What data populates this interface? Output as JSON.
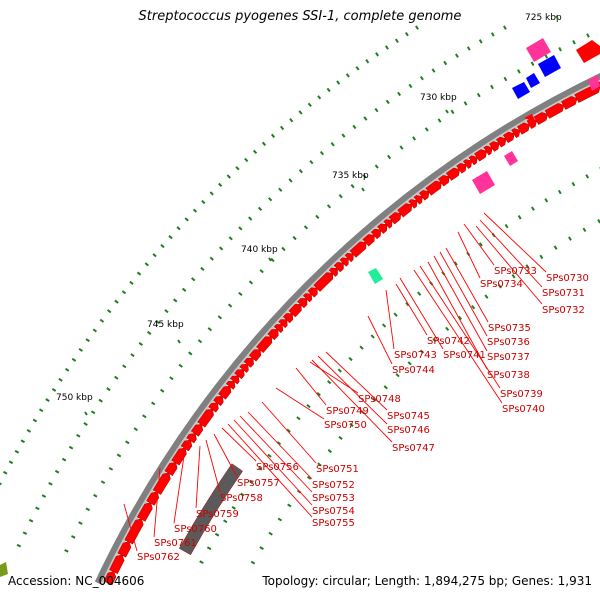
{
  "title": "Streptococcus pyogenes SSI-1, complete genome",
  "footer": {
    "accession": "Accession: NC_004606",
    "summary": "Topology: circular; Length: 1,894,275 bp; Genes: 1,931"
  },
  "colors": {
    "backbone": "#808080",
    "cds": "#ff0000",
    "cds_dark": "#c00000",
    "rRNA": "#ff3399",
    "blue_feature": "#0000ff",
    "cyan_feature": "#22ee99",
    "gray_feature": "#5a5a5a",
    "olive_feature": "#7a9a1a",
    "tick": "#1f7f1f",
    "label": "#cc0000"
  },
  "ruler": [
    {
      "label": "725 kbp"
    },
    {
      "label": "730 kbp"
    },
    {
      "label": "735 kbp"
    },
    {
      "label": "740 kbp"
    },
    {
      "label": "745 kbp"
    },
    {
      "label": "750 kbp"
    }
  ],
  "gene_labels": [
    "SPs0730",
    "SPs0731",
    "SPs0732",
    "SPs0733",
    "SPs0734",
    "SPs0735",
    "SPs0736",
    "SPs0737",
    "SPs0738",
    "SPs0739",
    "SPs0740",
    "SPs0741",
    "SPs0742",
    "SPs0743",
    "SPs0744",
    "SPs0745",
    "SPs0746",
    "SPs0747",
    "SPs0748",
    "SPs0749",
    "SPs0750",
    "SPs0751",
    "SPs0752",
    "SPs0753",
    "SPs0754",
    "SPs0755",
    "SPs0756",
    "SPs0757",
    "SPs0758",
    "SPs0759",
    "SPs0760",
    "SPs0761",
    "SPs0762"
  ]
}
